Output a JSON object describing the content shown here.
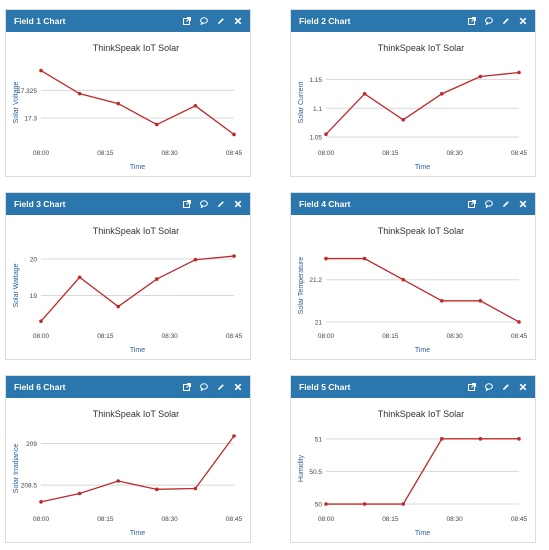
{
  "panels": [
    {
      "header": "Field 1 Chart",
      "chart_data": {
        "type": "line",
        "title": "ThinkSpeak IoT Solar",
        "xlabel": "Time",
        "ylabel": "Solar Voltage",
        "x": [
          "08:00",
          "08:09",
          "08:18",
          "08:27",
          "08:36",
          "08:45"
        ],
        "x_ticks": [
          "08:00",
          "08:15",
          "08:30",
          "08:45"
        ],
        "y_ticks": [
          "17.325",
          "17.3"
        ],
        "series": [
          {
            "values": [
              17.343,
              17.322,
              17.313,
              17.294,
              17.311,
              17.285
            ]
          }
        ],
        "ylim": [
          17.28,
          17.348
        ],
        "grid": true
      }
    },
    {
      "header": "Field 2 Chart",
      "chart_data": {
        "type": "line",
        "title": "ThinkSpeak IoT Solar",
        "xlabel": "Time",
        "ylabel": "Solar Current",
        "x": [
          "08:00",
          "08:09",
          "08:18",
          "08:27",
          "08:36",
          "08:45"
        ],
        "x_ticks": [
          "08:00",
          "08:15",
          "08:30",
          "08:45"
        ],
        "y_ticks": [
          "1.15",
          "1.1",
          "1.05"
        ],
        "series": [
          {
            "values": [
              1.055,
              1.125,
              1.08,
              1.125,
              1.155,
              1.162
            ]
          }
        ],
        "ylim": [
          1.045,
          1.175
        ],
        "grid": true
      }
    },
    {
      "header": "Field 3 Chart",
      "chart_data": {
        "type": "line",
        "title": "ThinkSpeak IoT Solar",
        "xlabel": "Time",
        "ylabel": "Solar Wattage",
        "x": [
          "08:00",
          "08:09",
          "08:18",
          "08:27",
          "08:36",
          "08:45"
        ],
        "x_ticks": [
          "08:00",
          "08:15",
          "08:30",
          "08:45"
        ],
        "y_ticks": [
          "20",
          "19"
        ],
        "series": [
          {
            "values": [
              18.3,
              19.5,
              18.7,
              19.45,
              19.98,
              20.08
            ]
          }
        ],
        "ylim": [
          18.25,
          20.3
        ],
        "grid": true
      }
    },
    {
      "header": "Field 4 Chart",
      "chart_data": {
        "type": "line",
        "title": "ThinkSpeak IoT Solar",
        "xlabel": "Time",
        "ylabel": "Solar Temperature",
        "x": [
          "08:00",
          "08:09",
          "08:18",
          "08:27",
          "08:36",
          "08:45"
        ],
        "x_ticks": [
          "08:00",
          "08:15",
          "08:30",
          "08:45"
        ],
        "y_ticks": [
          "21.2",
          "21"
        ],
        "series": [
          {
            "values": [
              21.3,
              21.3,
              21.2,
              21.1,
              21.1,
              21.0
            ]
          }
        ],
        "ylim": [
          20.995,
          21.35
        ],
        "grid": true
      }
    },
    {
      "header": "Field 6 Chart",
      "chart_data": {
        "type": "line",
        "title": "ThinkSpeak IoT Solar",
        "xlabel": "Time",
        "ylabel": "Solar Irradiance",
        "x": [
          "08:00",
          "08:09",
          "08:18",
          "08:27",
          "08:36",
          "08:45"
        ],
        "x_ticks": [
          "08:00",
          "08:15",
          "08:30",
          "08:45"
        ],
        "y_ticks": [
          "209",
          "208.5"
        ],
        "series": [
          {
            "values": [
              208.3,
              208.4,
              208.55,
              208.45,
              208.46,
              209.09
            ]
          }
        ],
        "ylim": [
          208.25,
          209.15
        ],
        "grid": true
      }
    },
    {
      "header": "Field 5 Chart",
      "chart_data": {
        "type": "line",
        "title": "ThinkSpeak IoT Solar",
        "xlabel": "Time",
        "ylabel": "Humidity",
        "x": [
          "08:00",
          "08:09",
          "08:18",
          "08:27",
          "08:36",
          "08:45"
        ],
        "x_ticks": [
          "08:00",
          "08:15",
          "08:30",
          "08:45"
        ],
        "y_ticks": [
          "51",
          "50.5",
          "50"
        ],
        "series": [
          {
            "values": [
              50.0,
              50.0,
              50.0,
              51.0,
              51.0,
              51.0
            ]
          }
        ],
        "ylim": [
          49.97,
          51.12
        ],
        "grid": true
      }
    }
  ],
  "colors": {
    "header_bg": "#2a76ad",
    "header_text": "#ffffff",
    "line": "#c0282c",
    "grid": "#d8d8d8",
    "title": "#333333",
    "axis_label": "#2a5d9f"
  },
  "header_icons": [
    "external-link-icon",
    "comment-icon",
    "pencil-icon",
    "close-icon"
  ]
}
